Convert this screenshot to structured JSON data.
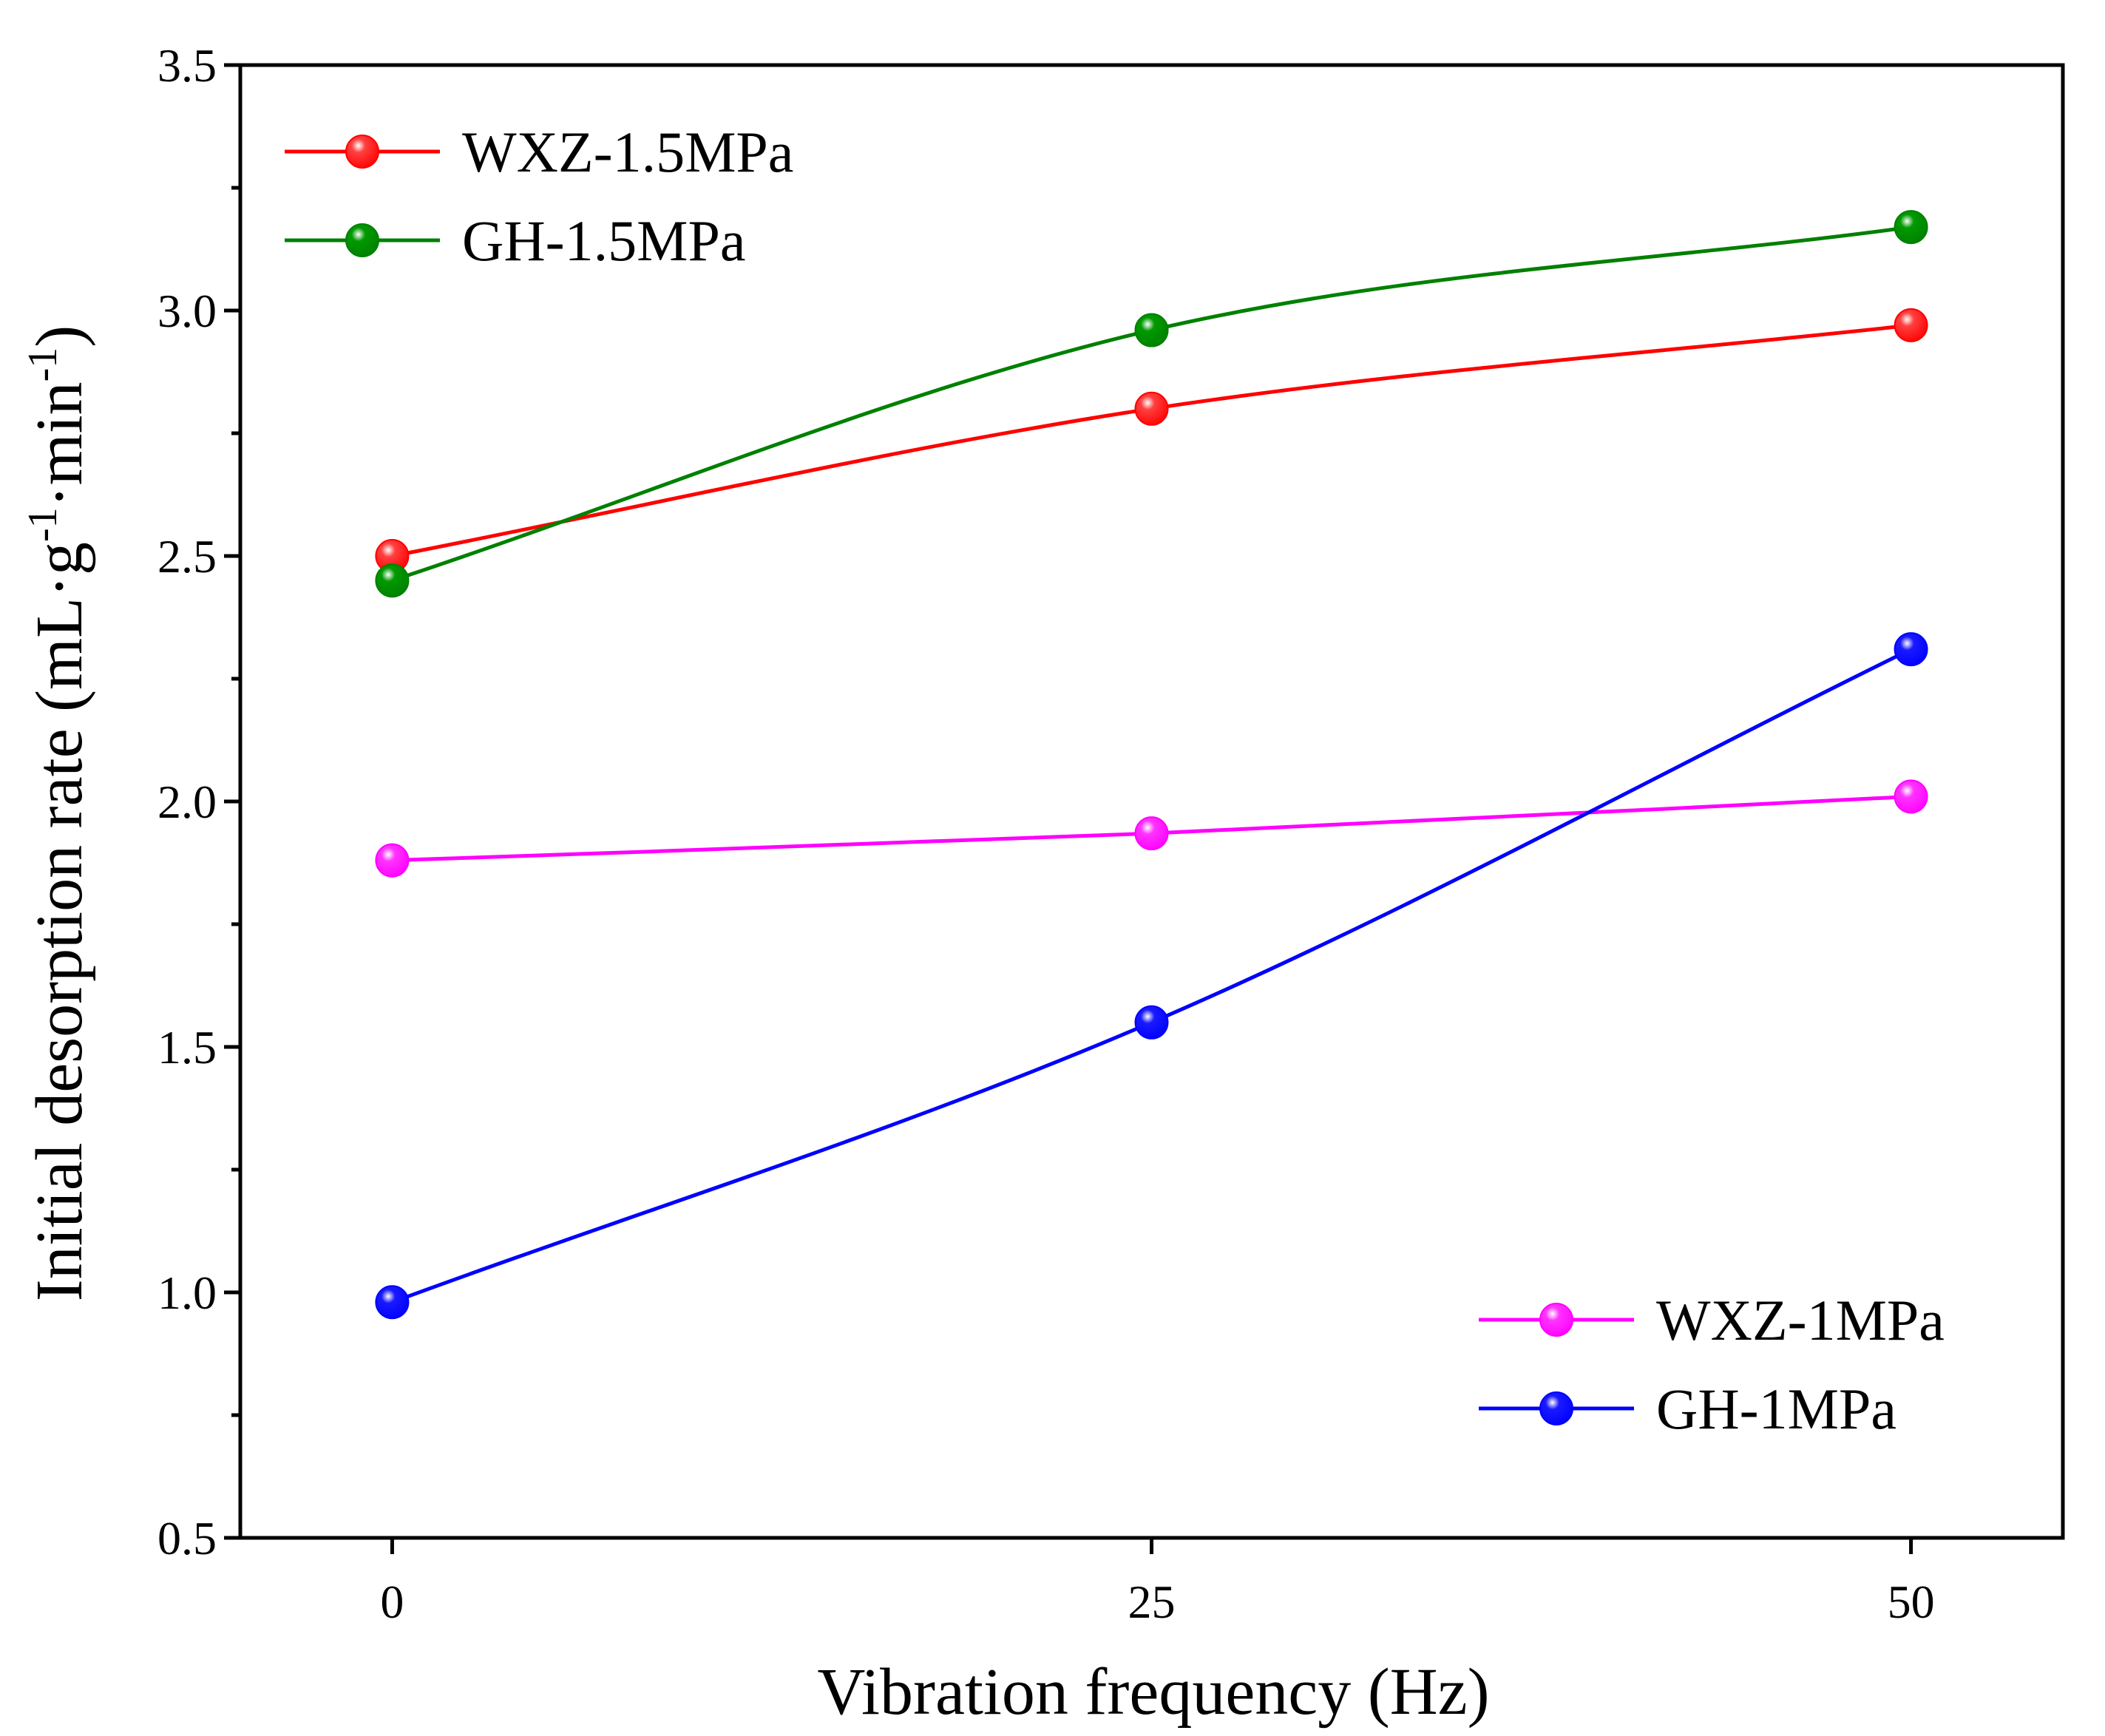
{
  "chart_data": {
    "type": "line",
    "title": "",
    "xlabel": "Vibration frequency (Hz)",
    "ylabel": {
      "main": "Initial desorption rate",
      "unit_parts": [
        "(mL·g",
        "-1",
        "·min",
        "-1",
        ")"
      ]
    },
    "x": [
      0,
      25,
      50
    ],
    "x_tick_labels": [
      "0",
      "25",
      "50"
    ],
    "xlim": [
      -5,
      55
    ],
    "ylim": [
      0.5,
      3.5
    ],
    "y_ticks": [
      0.5,
      1.0,
      1.5,
      2.0,
      2.5,
      3.0,
      3.5
    ],
    "y_tick_labels": [
      "0.5",
      "1.0",
      "1.5",
      "2.0",
      "2.5",
      "3.0",
      "3.5"
    ],
    "grid": false,
    "series": [
      {
        "name": "WXZ-1.5MPa",
        "values": [
          2.5,
          2.8,
          2.97
        ],
        "color": "#ff0000",
        "marker_color": "#ff4040",
        "legend_group": "top-left"
      },
      {
        "name": "GH-1.5MPa",
        "values": [
          2.45,
          2.96,
          3.17
        ],
        "color": "#008000",
        "marker_color": "#009a00",
        "legend_group": "top-left"
      },
      {
        "name": "WXZ-1MPa",
        "values": [
          1.88,
          1.935,
          2.01
        ],
        "color": "#ff00ff",
        "marker_color": "#ff33ff",
        "legend_group": "bottom-right"
      },
      {
        "name": "GH-1MPa",
        "values": [
          0.98,
          1.55,
          2.31
        ],
        "color": "#0000ff",
        "marker_color": "#1a1aff",
        "legend_group": "bottom-right"
      }
    ]
  }
}
